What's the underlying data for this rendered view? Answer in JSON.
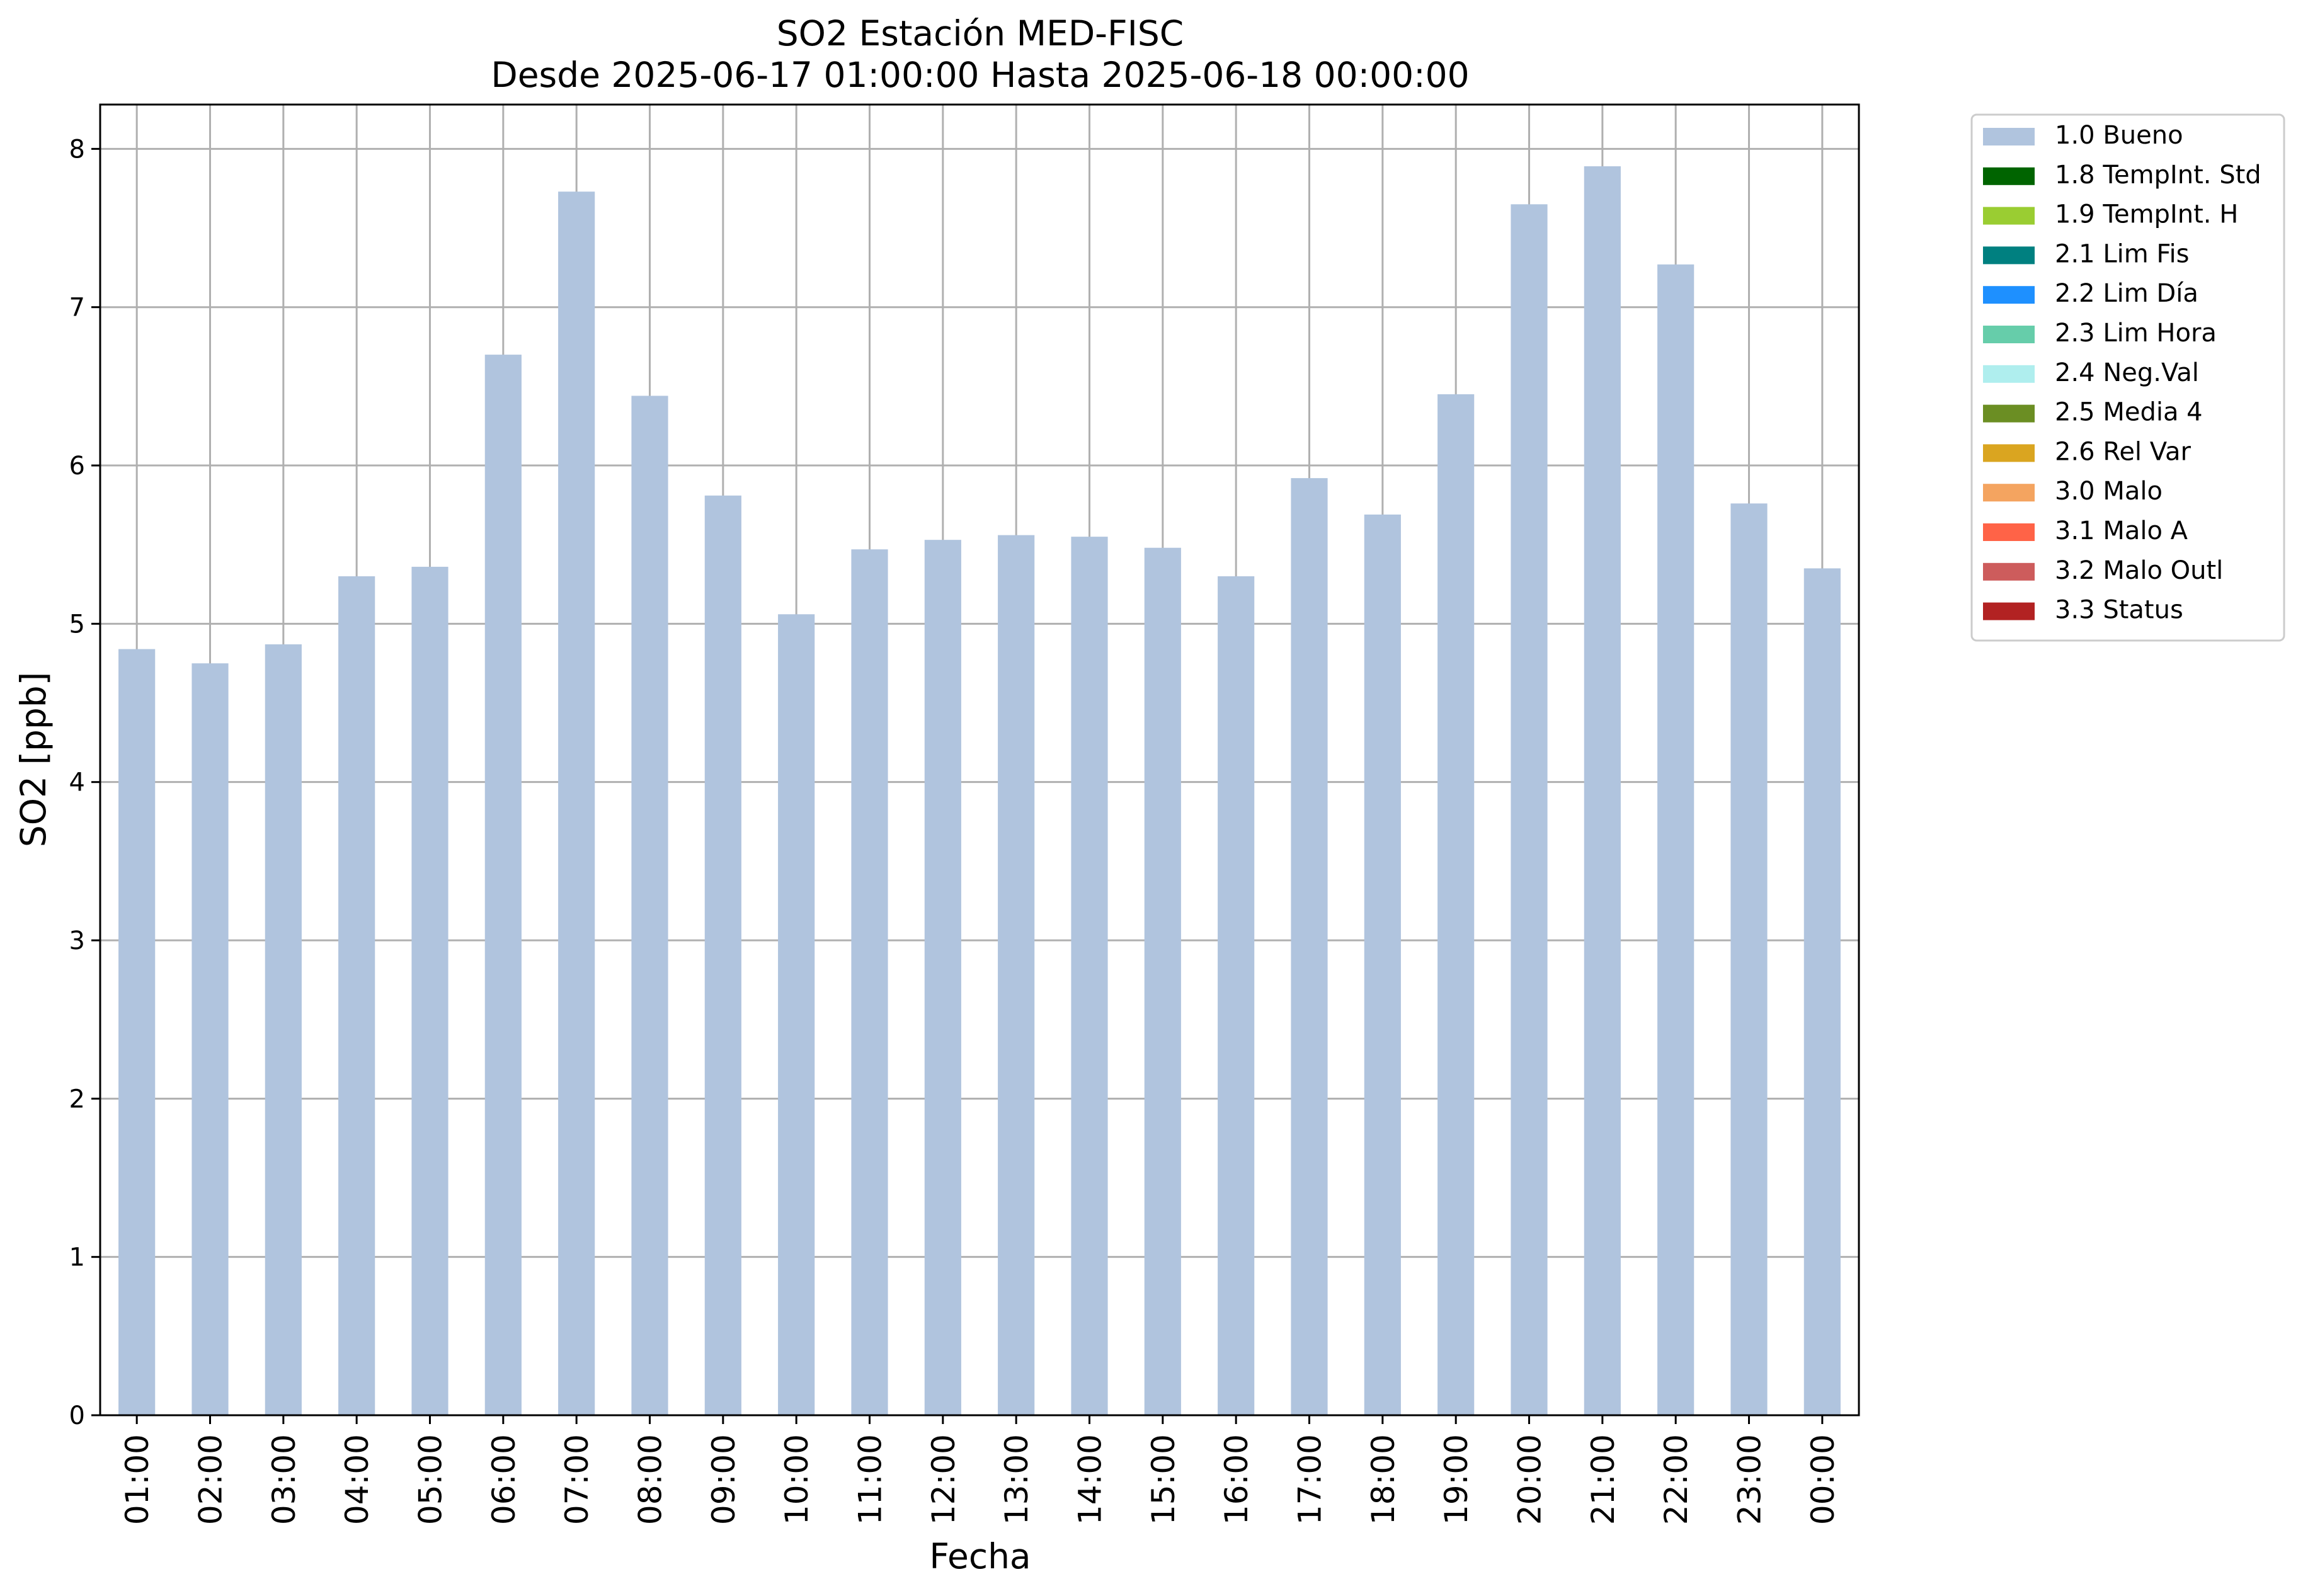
{
  "chart_data": {
    "type": "bar",
    "title": "SO2 Estación MED-FISC",
    "subtitle": "Desde 2025-06-17 01:00:00 Hasta 2025-06-18 00:00:00",
    "xlabel": "Fecha",
    "ylabel": "SO2 [ppb]",
    "ylim": [
      0,
      8.28
    ],
    "yticks": [
      0,
      1,
      2,
      3,
      4,
      5,
      6,
      7,
      8
    ],
    "grid": true,
    "legend_position": "outside-top-right",
    "categories": [
      "01:00",
      "02:00",
      "03:00",
      "04:00",
      "05:00",
      "06:00",
      "07:00",
      "08:00",
      "09:00",
      "10:00",
      "11:00",
      "12:00",
      "13:00",
      "14:00",
      "15:00",
      "16:00",
      "17:00",
      "18:00",
      "19:00",
      "20:00",
      "21:00",
      "22:00",
      "23:00",
      "00:00"
    ],
    "series": [
      {
        "name": "1.0 Bueno",
        "color": "#b0c4de",
        "values": [
          4.84,
          4.75,
          4.87,
          5.3,
          5.36,
          6.7,
          7.73,
          6.44,
          5.81,
          5.06,
          5.47,
          5.53,
          5.56,
          5.55,
          5.48,
          5.3,
          5.92,
          5.69,
          6.45,
          7.65,
          7.89,
          7.27,
          5.76,
          5.35
        ]
      }
    ],
    "legend": [
      {
        "label": "1.0 Bueno",
        "color": "#b0c4de"
      },
      {
        "label": "1.8 TempInt. Std",
        "color": "#006400"
      },
      {
        "label": "1.9 TempInt. H",
        "color": "#9acd32"
      },
      {
        "label": "2.1 Lim Fis",
        "color": "#008080"
      },
      {
        "label": "2.2 Lim Día",
        "color": "#1e90ff"
      },
      {
        "label": "2.3 Lim Hora",
        "color": "#66cdaa"
      },
      {
        "label": "2.4 Neg.Val",
        "color": "#afeeee"
      },
      {
        "label": "2.5 Media 4",
        "color": "#6b8e23"
      },
      {
        "label": "2.6 Rel Var",
        "color": "#daa520"
      },
      {
        "label": "3.0 Malo",
        "color": "#f4a460"
      },
      {
        "label": "3.1 Malo A",
        "color": "#ff6347"
      },
      {
        "label": "3.2 Malo Outl",
        "color": "#cd5c5c"
      },
      {
        "label": "3.3 Status",
        "color": "#b22222"
      }
    ]
  }
}
